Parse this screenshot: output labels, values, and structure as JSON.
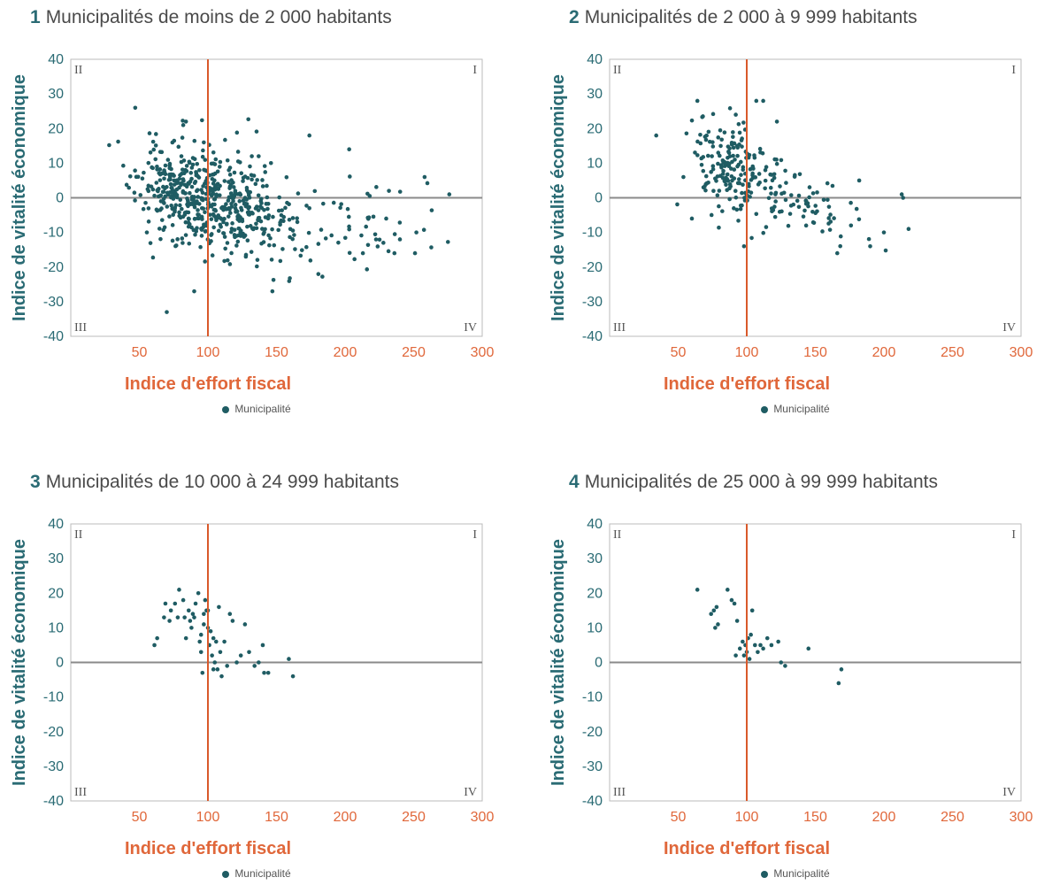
{
  "colors": {
    "points": "#1f5c63",
    "vertical_line": "#d9592b",
    "zero_line": "#8a8a8a",
    "frame": "#bbbbbb"
  },
  "chart_data": [
    {
      "type": "scatter",
      "number": "1",
      "title": "Municipalités de moins de 2 000 habitants",
      "xlabel": "Indice d'effort fiscal",
      "ylabel": "Indice de vitalité économique",
      "xlim": [
        0,
        300
      ],
      "ylim": [
        -40,
        40
      ],
      "xticks": [
        50,
        100,
        150,
        200,
        250,
        300
      ],
      "yticks": [
        40,
        30,
        20,
        10,
        0,
        -10,
        -20,
        -30,
        -40
      ],
      "quadrants": {
        "top_left": "II",
        "top_right": "I",
        "bottom_left": "III",
        "bottom_right": "IV"
      },
      "reference_lines": {
        "x": 100,
        "y": 0
      },
      "legend": "Municipalité",
      "cloud": {
        "count": 620,
        "seed": 11,
        "groups": [
          {
            "weight": 0.62,
            "x_mean": 88,
            "x_sd": 20,
            "y_mean": 1,
            "y_sd": 7,
            "slope": -0.06
          },
          {
            "weight": 0.3,
            "x_mean": 130,
            "x_sd": 22,
            "y_mean": -4,
            "y_sd": 7,
            "slope": -0.08
          },
          {
            "weight": 0.08,
            "x_mean": 205,
            "x_sd": 35,
            "y_mean": -7,
            "y_sd": 7,
            "slope": 0.0
          }
        ]
      },
      "points": [
        {
          "x": 47,
          "y": 26
        },
        {
          "x": 82,
          "y": 21
        },
        {
          "x": 84,
          "y": 22
        },
        {
          "x": 174,
          "y": 18
        },
        {
          "x": 203,
          "y": 14
        },
        {
          "x": 258,
          "y": 6
        },
        {
          "x": 276,
          "y": 1
        },
        {
          "x": 232,
          "y": 2
        },
        {
          "x": 70,
          "y": -33
        },
        {
          "x": 90,
          "y": -27
        },
        {
          "x": 147,
          "y": -27
        },
        {
          "x": 213,
          "y": -16
        },
        {
          "x": 236,
          "y": -16
        },
        {
          "x": 251,
          "y": -16
        },
        {
          "x": 252,
          "y": -10
        },
        {
          "x": 240,
          "y": -12
        },
        {
          "x": 230,
          "y": -6
        },
        {
          "x": 132,
          "y": 12
        },
        {
          "x": 137,
          "y": 12
        },
        {
          "x": 97,
          "y": 16
        }
      ]
    },
    {
      "type": "scatter",
      "number": "2",
      "title": "Municipalités de 2 000 à 9 999 habitants",
      "xlabel": "Indice d'effort fiscal",
      "ylabel": "Indice de vitalité économique",
      "xlim": [
        0,
        300
      ],
      "ylim": [
        -40,
        40
      ],
      "xticks": [
        50,
        100,
        150,
        200,
        250,
        300
      ],
      "yticks": [
        40,
        30,
        20,
        10,
        0,
        -10,
        -20,
        -30,
        -40
      ],
      "quadrants": {
        "top_left": "II",
        "top_right": "I",
        "bottom_left": "III",
        "bottom_right": "IV"
      },
      "reference_lines": {
        "x": 100,
        "y": 0
      },
      "legend": "Municipalité",
      "cloud": {
        "count": 250,
        "seed": 23,
        "groups": [
          {
            "weight": 0.72,
            "x_mean": 88,
            "x_sd": 15,
            "y_mean": 8,
            "y_sd": 7,
            "slope": -0.15
          },
          {
            "weight": 0.28,
            "x_mean": 140,
            "x_sd": 18,
            "y_mean": -1,
            "y_sd": 5,
            "slope": -0.1
          }
        ]
      },
      "points": [
        {
          "x": 34,
          "y": 18
        },
        {
          "x": 64,
          "y": 28
        },
        {
          "x": 112,
          "y": 28
        },
        {
          "x": 122,
          "y": 22
        },
        {
          "x": 92,
          "y": 24
        },
        {
          "x": 98,
          "y": -14
        },
        {
          "x": 166,
          "y": -16
        },
        {
          "x": 190,
          "y": -14
        },
        {
          "x": 200,
          "y": -10
        },
        {
          "x": 213,
          "y": 1
        },
        {
          "x": 214,
          "y": 0
        },
        {
          "x": 218,
          "y": -9
        },
        {
          "x": 182,
          "y": 5
        },
        {
          "x": 176,
          "y": -8
        },
        {
          "x": 60,
          "y": -6
        }
      ]
    },
    {
      "type": "scatter",
      "number": "3",
      "title": "Municipalités de 10 000 à 24 999 habitants",
      "xlabel": "Indice d'effort fiscal",
      "ylabel": "Indice de vitalité économique",
      "xlim": [
        0,
        300
      ],
      "ylim": [
        -40,
        40
      ],
      "xticks": [
        50,
        100,
        150,
        200,
        250,
        300
      ],
      "yticks": [
        40,
        30,
        20,
        10,
        0,
        -10,
        -20,
        -30,
        -40
      ],
      "quadrants": {
        "top_left": "II",
        "top_right": "I",
        "bottom_left": "III",
        "bottom_right": "IV"
      },
      "reference_lines": {
        "x": 100,
        "y": 0
      },
      "legend": "Municipalité",
      "points": [
        {
          "x": 61,
          "y": 5
        },
        {
          "x": 63,
          "y": 7
        },
        {
          "x": 68,
          "y": 13
        },
        {
          "x": 69,
          "y": 17
        },
        {
          "x": 72,
          "y": 12
        },
        {
          "x": 73,
          "y": 15
        },
        {
          "x": 76,
          "y": 17
        },
        {
          "x": 78,
          "y": 13
        },
        {
          "x": 79,
          "y": 21
        },
        {
          "x": 82,
          "y": 18
        },
        {
          "x": 83,
          "y": 13
        },
        {
          "x": 84,
          "y": 7
        },
        {
          "x": 86,
          "y": 15
        },
        {
          "x": 87,
          "y": 12
        },
        {
          "x": 88,
          "y": 10
        },
        {
          "x": 89,
          "y": 14
        },
        {
          "x": 90,
          "y": 13
        },
        {
          "x": 91,
          "y": 17
        },
        {
          "x": 93,
          "y": 20
        },
        {
          "x": 94,
          "y": 6
        },
        {
          "x": 95,
          "y": 3
        },
        {
          "x": 96,
          "y": -3
        },
        {
          "x": 97,
          "y": 14
        },
        {
          "x": 98,
          "y": 18
        },
        {
          "x": 99,
          "y": 15
        },
        {
          "x": 100,
          "y": 10
        },
        {
          "x": 101,
          "y": 5
        },
        {
          "x": 102,
          "y": 9
        },
        {
          "x": 103,
          "y": 2
        },
        {
          "x": 104,
          "y": 7
        },
        {
          "x": 105,
          "y": 0
        },
        {
          "x": 106,
          "y": 6
        },
        {
          "x": 107,
          "y": -2
        },
        {
          "x": 108,
          "y": 16
        },
        {
          "x": 109,
          "y": 3
        },
        {
          "x": 110,
          "y": -4
        },
        {
          "x": 112,
          "y": 6
        },
        {
          "x": 114,
          "y": -1
        },
        {
          "x": 116,
          "y": 14
        },
        {
          "x": 118,
          "y": 12
        },
        {
          "x": 121,
          "y": 0
        },
        {
          "x": 124,
          "y": 2
        },
        {
          "x": 127,
          "y": 11
        },
        {
          "x": 130,
          "y": 3
        },
        {
          "x": 134,
          "y": -1
        },
        {
          "x": 137,
          "y": 0
        },
        {
          "x": 140,
          "y": 5
        },
        {
          "x": 141,
          "y": -3
        },
        {
          "x": 144,
          "y": -3
        },
        {
          "x": 159,
          "y": 1
        },
        {
          "x": 162,
          "y": -4
        },
        {
          "x": 97,
          "y": 11
        },
        {
          "x": 100,
          "y": 15
        },
        {
          "x": 95,
          "y": 8
        },
        {
          "x": 104,
          "y": -2
        }
      ]
    },
    {
      "type": "scatter",
      "number": "4",
      "title": "Municipalités de 25 000 à 99 999 habitants",
      "xlabel": "Indice d'effort fiscal",
      "ylabel": "Indice de vitalité économique",
      "xlim": [
        0,
        300
      ],
      "ylim": [
        -40,
        40
      ],
      "xticks": [
        50,
        100,
        150,
        200,
        250,
        300
      ],
      "yticks": [
        40,
        30,
        20,
        10,
        0,
        -10,
        -20,
        -30,
        -40
      ],
      "quadrants": {
        "top_left": "II",
        "top_right": "I",
        "bottom_left": "III",
        "bottom_right": "IV"
      },
      "reference_lines": {
        "x": 100,
        "y": 0
      },
      "legend": "Municipalité",
      "points": [
        {
          "x": 64,
          "y": 21
        },
        {
          "x": 74,
          "y": 14
        },
        {
          "x": 76,
          "y": 15
        },
        {
          "x": 78,
          "y": 16
        },
        {
          "x": 77,
          "y": 10
        },
        {
          "x": 79,
          "y": 11
        },
        {
          "x": 86,
          "y": 21
        },
        {
          "x": 89,
          "y": 18
        },
        {
          "x": 91,
          "y": 17
        },
        {
          "x": 93,
          "y": 12
        },
        {
          "x": 92,
          "y": 2
        },
        {
          "x": 95,
          "y": 4
        },
        {
          "x": 97,
          "y": 6
        },
        {
          "x": 99,
          "y": 5
        },
        {
          "x": 100,
          "y": 3
        },
        {
          "x": 101,
          "y": 7
        },
        {
          "x": 102,
          "y": 1
        },
        {
          "x": 103,
          "y": 8
        },
        {
          "x": 104,
          "y": 15
        },
        {
          "x": 106,
          "y": 5
        },
        {
          "x": 108,
          "y": 3
        },
        {
          "x": 110,
          "y": 5
        },
        {
          "x": 112,
          "y": 4
        },
        {
          "x": 115,
          "y": 7
        },
        {
          "x": 118,
          "y": 5
        },
        {
          "x": 123,
          "y": 6
        },
        {
          "x": 125,
          "y": 0
        },
        {
          "x": 128,
          "y": -1
        },
        {
          "x": 145,
          "y": 4
        },
        {
          "x": 167,
          "y": -6
        },
        {
          "x": 169,
          "y": -2
        },
        {
          "x": 98,
          "y": 2
        }
      ]
    }
  ]
}
